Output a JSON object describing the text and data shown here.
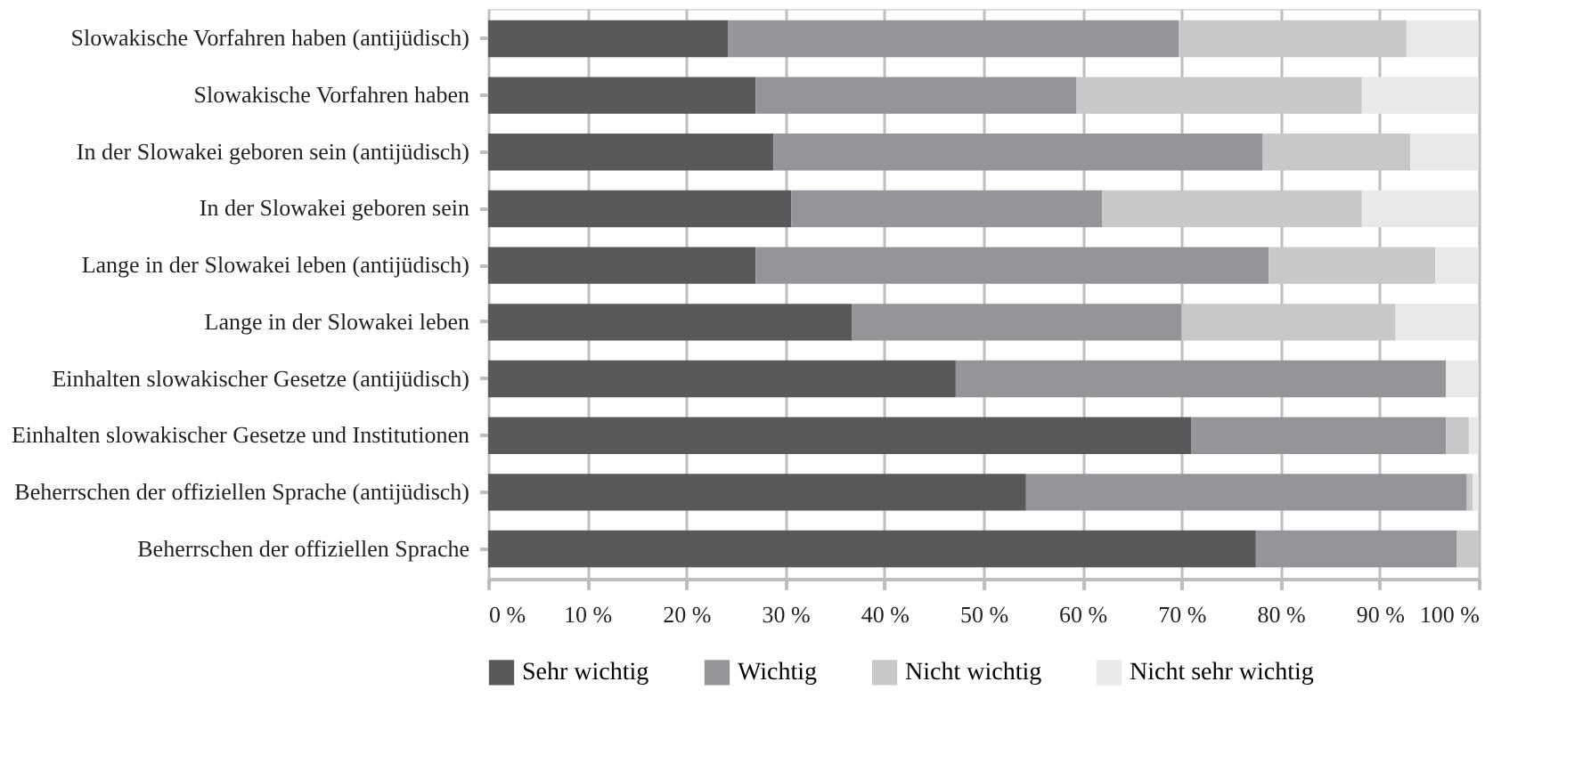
{
  "chart_data": {
    "type": "bar",
    "orientation": "horizontal",
    "stacked": true,
    "categories": [
      "Slowakische Vorfahren haben (antijüdisch)",
      "Slowakische Vorfahren haben",
      "In der Slowakei geboren sein (antijüdisch)",
      "In der Slowakei geboren sein",
      "Lange in der Slowakei leben (antijüdisch)",
      "Lange in der Slowakei leben",
      "Einhalten slowakischer Gesetze (antijüdisch)",
      "Einhalten slowakischer Gesetze und Institutionen",
      "Beherrschen der offiziellen Sprache (antijüdisch)",
      "Beherrschen der offiziellen Sprache"
    ],
    "series": [
      {
        "name": "Sehr wichtig",
        "color": "#58595b",
        "values": [
          24.2,
          27,
          28.8,
          30.6,
          27,
          36.7,
          47.2,
          71,
          54.3,
          77.5
        ]
      },
      {
        "name": "Wichtig",
        "color": "#939598",
        "values": [
          45.5,
          32.4,
          49.4,
          31.4,
          51.8,
          33.3,
          49.5,
          25.7,
          44.5,
          20.3
        ]
      },
      {
        "name": "Nicht wichtig",
        "color": "#c7c8ca",
        "values": [
          23,
          28.8,
          14.9,
          26.2,
          16.8,
          21.6,
          0,
          2.3,
          0.6,
          2.2
        ]
      },
      {
        "name": "Nicht sehr wichtig",
        "color": "#e9e9ea",
        "values": [
          7.3,
          11.8,
          6.9,
          11.8,
          4.4,
          8.4,
          3.3,
          1,
          0.6,
          0
        ]
      }
    ],
    "xlim": [
      0,
      100
    ],
    "xticks": [
      {
        "value": 0,
        "label": "0 %"
      },
      {
        "value": 10,
        "label": "10 %"
      },
      {
        "value": 20,
        "label": "20 %"
      },
      {
        "value": 30,
        "label": "30 %"
      },
      {
        "value": 40,
        "label": "40 %"
      },
      {
        "value": 50,
        "label": "50 %"
      },
      {
        "value": 60,
        "label": "60 %"
      },
      {
        "value": 70,
        "label": "70 %"
      },
      {
        "value": 80,
        "label": "80 %"
      },
      {
        "value": 90,
        "label": "90 %"
      },
      {
        "value": 100,
        "label": "100 %"
      }
    ],
    "grid": "x",
    "legend": "bottom"
  }
}
